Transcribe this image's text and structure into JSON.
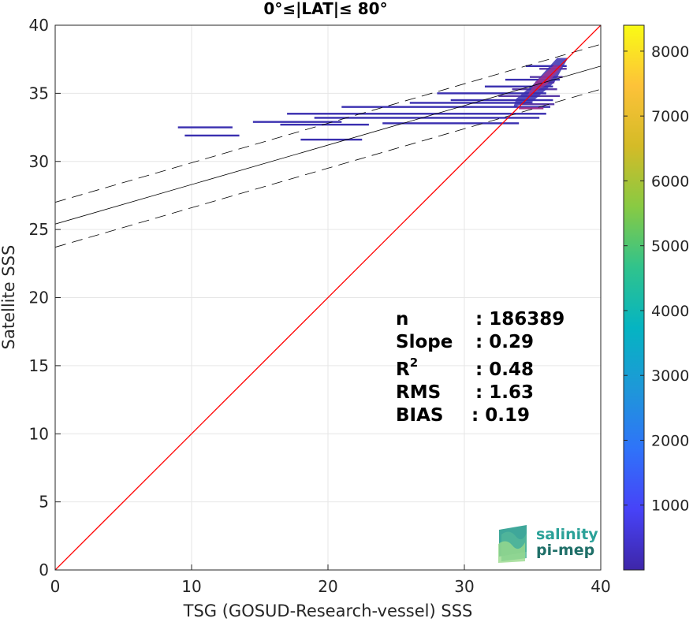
{
  "chart_data": {
    "type": "scatter",
    "title": "0°≤|LAT|≤ 80°",
    "xlabel": "TSG (GOSUD-Research-vessel) SSS",
    "ylabel": "Satellite SSS",
    "xlim": [
      0,
      40
    ],
    "ylim": [
      0,
      40
    ],
    "x_ticks": [
      "0",
      "10",
      "20",
      "30",
      "40"
    ],
    "y_ticks": [
      "0",
      "5",
      "10",
      "15",
      "20",
      "25",
      "30",
      "35",
      "40"
    ],
    "grid": true,
    "one_to_one_line": {
      "from": [
        0,
        0
      ],
      "to": [
        40,
        40
      ],
      "color": "#ff0000"
    },
    "fit_line": {
      "from": [
        0,
        25.4
      ],
      "to": [
        40,
        37.0
      ],
      "color": "#000000"
    },
    "fit_band_upper": {
      "from": [
        0,
        27.0
      ],
      "to": [
        40,
        38.6
      ],
      "color": "#000000"
    },
    "fit_band_lower": {
      "from": [
        0,
        23.7
      ],
      "to": [
        40,
        35.3
      ],
      "color": "#000000"
    },
    "density_segments": [
      {
        "x0": 9.0,
        "x1": 13.0,
        "y": 32.5,
        "level": "low"
      },
      {
        "x0": 9.5,
        "x1": 13.5,
        "y": 31.9,
        "level": "low"
      },
      {
        "x0": 14.5,
        "x1": 21.0,
        "y": 32.9,
        "level": "low"
      },
      {
        "x0": 17.0,
        "x1": 36.0,
        "y": 33.5,
        "level": "low"
      },
      {
        "x0": 19.0,
        "x1": 35.5,
        "y": 33.2,
        "level": "low"
      },
      {
        "x0": 21.0,
        "x1": 36.3,
        "y": 34.0,
        "level": "low"
      },
      {
        "x0": 28.0,
        "x1": 36.0,
        "y": 35.0,
        "level": "low"
      },
      {
        "x0": 29.0,
        "x1": 36.5,
        "y": 34.5,
        "level": "low"
      },
      {
        "x0": 33.0,
        "x1": 37.0,
        "y": 36.0,
        "level": "low"
      },
      {
        "x0": 34.5,
        "x1": 37.5,
        "y": 37.0,
        "level": "low"
      },
      {
        "x0": 16.5,
        "x1": 23.0,
        "y": 32.7,
        "level": "low"
      },
      {
        "x0": 18.0,
        "x1": 22.5,
        "y": 31.6,
        "level": "low"
      },
      {
        "x0": 24.0,
        "x1": 34.0,
        "y": 32.8,
        "level": "low"
      },
      {
        "x0": 26.0,
        "x1": 35.0,
        "y": 34.3,
        "level": "low"
      },
      {
        "x0": 31.5,
        "x1": 36.5,
        "y": 35.5,
        "level": "low"
      },
      {
        "x0": 32.5,
        "x1": 37.0,
        "y": 34.8,
        "level": "mid"
      },
      {
        "x0": 33.5,
        "x1": 36.8,
        "y": 35.3,
        "level": "mid"
      },
      {
        "x0": 34.2,
        "x1": 36.6,
        "y": 34.2,
        "level": "mid"
      },
      {
        "x0": 34.8,
        "x1": 37.2,
        "y": 36.2,
        "level": "mid"
      },
      {
        "x0": 35.5,
        "x1": 37.5,
        "y": 36.8,
        "level": "mid"
      },
      {
        "x0": 34.0,
        "x1": 35.8,
        "y": 33.9,
        "level": "high"
      },
      {
        "x0": 35.2,
        "x1": 36.6,
        "y": 35.8,
        "level": "high"
      }
    ],
    "stats": [
      {
        "key": "n",
        "value": ": 186389"
      },
      {
        "key": "Slope",
        "value": ": 0.29"
      },
      {
        "key": "R",
        "sup": "2",
        "value": ": 0.48"
      },
      {
        "key": "RMS",
        "value": ": 1.63"
      },
      {
        "key": "BIAS",
        "value": ": 0.19"
      }
    ],
    "colorbar": {
      "min": 0,
      "max": 8400,
      "ticks": [
        "1000",
        "2000",
        "3000",
        "4000",
        "5000",
        "6000",
        "7000",
        "8000"
      ],
      "colormap": [
        "#3e26a8",
        "#4743f8",
        "#2f73f9",
        "#1e98d8",
        "#05b4c2",
        "#30c38c",
        "#88ca43",
        "#d4bb27",
        "#fdc239",
        "#f9fb15"
      ]
    }
  },
  "logo": {
    "line1": "salinity",
    "line2": "pi-mep"
  },
  "colors": {
    "density_low": "#3a2fb0",
    "density_mid": "#5a3aa8",
    "density_high": "#a0338f"
  }
}
